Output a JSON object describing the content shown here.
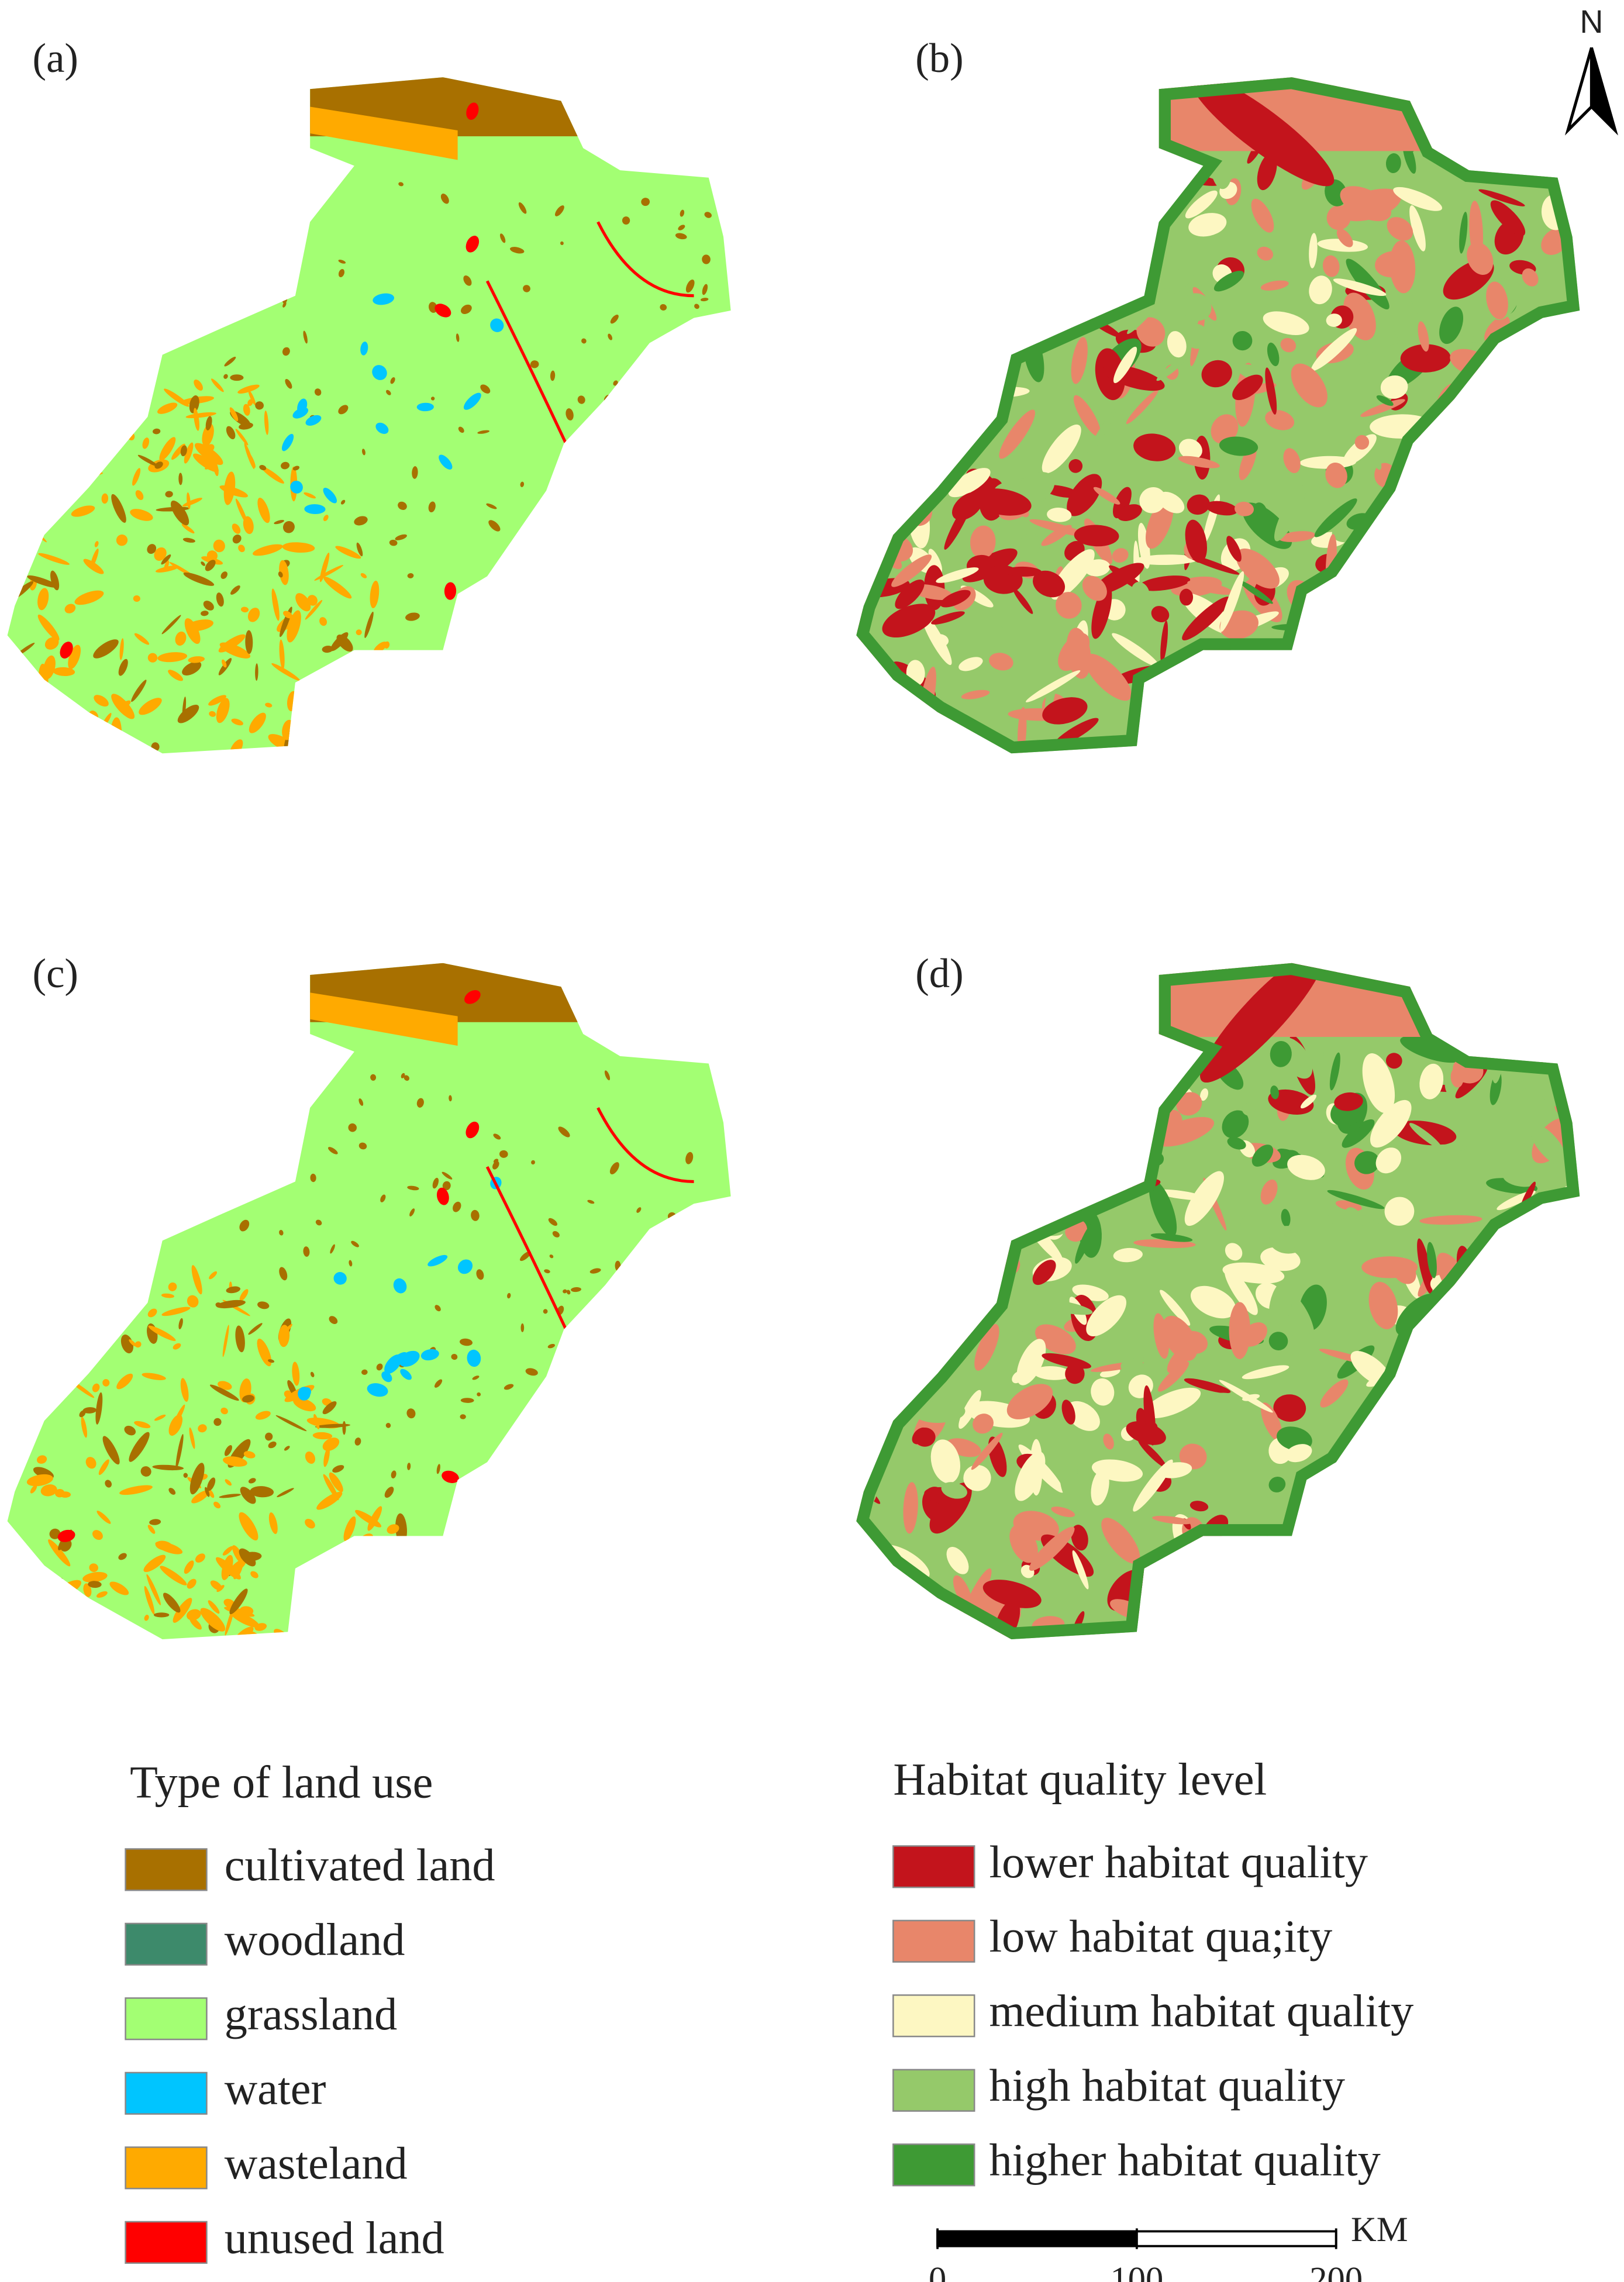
{
  "panels": [
    {
      "label": "(a)"
    },
    {
      "label": "(b)"
    },
    {
      "label": "(c)"
    },
    {
      "label": "(d)"
    }
  ],
  "north_arrow": {
    "label": "N"
  },
  "land_use_legend": {
    "title": "Type of land use",
    "items": [
      {
        "label": "cultivated land",
        "color": "#a87000"
      },
      {
        "label": "woodland",
        "color": "#3d8a6b"
      },
      {
        "label": "grassland",
        "color": "#a3ff73"
      },
      {
        "label": "water",
        "color": "#00c5ff"
      },
      {
        "label": "wasteland",
        "color": "#ffaa00"
      },
      {
        "label": "unused land",
        "color": "#ff0000"
      }
    ]
  },
  "habitat_legend": {
    "title": "Habitat quality level",
    "items": [
      {
        "label": "lower habitat quality",
        "color": "#c3141c"
      },
      {
        "label": "low habitat qua;ity",
        "color": "#e8866a"
      },
      {
        "label": "medium habitat quality",
        "color": "#fdf7c2"
      },
      {
        "label": "high habitat quality",
        "color": "#95c96a"
      },
      {
        "label": "higher habitat quality",
        "color": "#3e9a34"
      }
    ]
  },
  "scale_bar": {
    "unit": "KM",
    "ticks": [
      0,
      100,
      200
    ]
  }
}
